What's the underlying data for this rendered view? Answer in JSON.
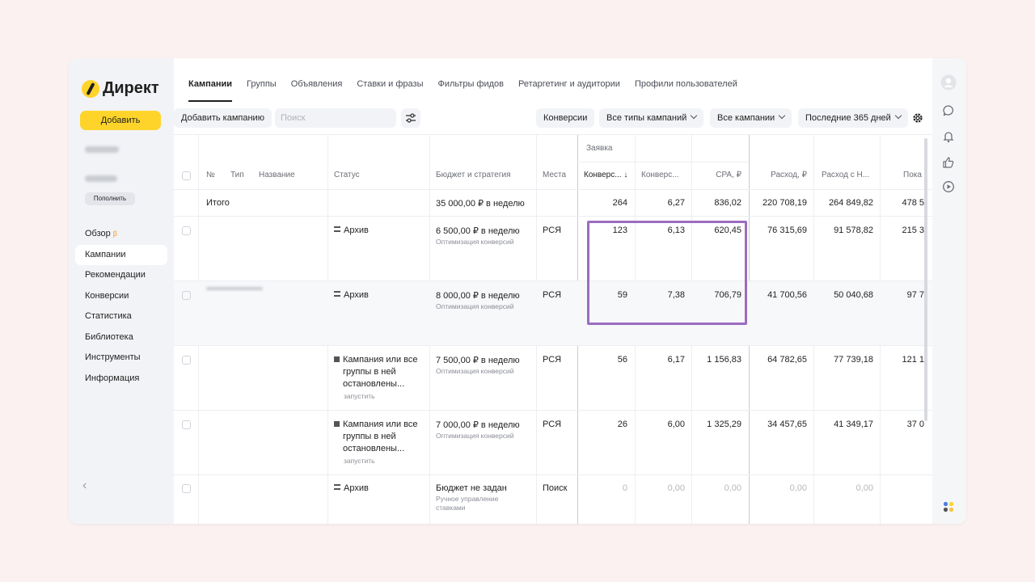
{
  "logo": {
    "text": "Директ"
  },
  "sidebar": {
    "add_button": "Добавить",
    "topup_button": "Пополнить",
    "nav": [
      {
        "label": "Обзор",
        "beta": "β"
      },
      {
        "label": "Кампании"
      },
      {
        "label": "Рекомендации"
      },
      {
        "label": "Конверсии"
      },
      {
        "label": "Статистика"
      },
      {
        "label": "Библиотека"
      },
      {
        "label": "Инструменты"
      },
      {
        "label": "Информация"
      }
    ],
    "collapse": "‹"
  },
  "tabs": [
    "Кампании",
    "Группы",
    "Объявления",
    "Ставки и фразы",
    "Фильтры фидов",
    "Ретаргетинг и аудитории",
    "Профили пользователей"
  ],
  "toolbar": {
    "add_campaign": "Добавить кампанию",
    "search_placeholder": "Поиск",
    "conversions": "Конверсии",
    "campaign_types": "Все типы кампаний",
    "all_campaigns": "Все кампании",
    "period": "Последние 365 дней"
  },
  "table": {
    "group_header": "Заявка",
    "headers": {
      "no": "№",
      "type": "Тип",
      "name": "Название",
      "status": "Статус",
      "budget": "Бюджет и стратегия",
      "places": "Места",
      "conv": "Конверс... ↓",
      "conv_rate": "Конверс...",
      "cpa": "CPA, ₽",
      "spend": "Расход, ₽",
      "spend_vat": "Расход с Н...",
      "shows": "Пока"
    },
    "total": {
      "label": "Итого",
      "budget": "35 000,00 ₽ в неделю",
      "conv": "264",
      "conv_rate": "6,27",
      "cpa": "836,02",
      "spend": "220 708,19",
      "spend_vat": "264 849,82",
      "shows": "478 5"
    },
    "rows": [
      {
        "status": "Архив",
        "status_action": "",
        "budget": "6 500,00 ₽ в неделю",
        "strategy": "Оптимизация конверсий",
        "places": "РСЯ",
        "conv": "123",
        "conv_rate": "6,13",
        "cpa": "620,45",
        "spend": "76 315,69",
        "spend_vat": "91 578,82",
        "shows": "215 3"
      },
      {
        "status": "Архив",
        "status_action": "",
        "budget": "8 000,00 ₽ в неделю",
        "strategy": "Оптимизация конверсий",
        "places": "РСЯ",
        "conv": "59",
        "conv_rate": "7,38",
        "cpa": "706,79",
        "spend": "41 700,56",
        "spend_vat": "50 040,68",
        "shows": "97 7"
      },
      {
        "status_lines": [
          "Кампания или все",
          "группы в ней",
          "остановлены..."
        ],
        "status_action": "запустить",
        "budget": "7 500,00 ₽ в неделю",
        "strategy": "Оптимизация конверсий",
        "places": "РСЯ",
        "conv": "56",
        "conv_rate": "6,17",
        "cpa": "1 156,83",
        "spend": "64 782,65",
        "spend_vat": "77 739,18",
        "shows": "121 1"
      },
      {
        "status_lines": [
          "Кампания или все",
          "группы в ней",
          "остановлены..."
        ],
        "status_action": "запустить",
        "budget": "7 000,00 ₽ в неделю",
        "strategy": "Оптимизация конверсий",
        "places": "РСЯ",
        "conv": "26",
        "conv_rate": "6,00",
        "cpa": "1 325,29",
        "spend": "34 457,65",
        "spend_vat": "41 349,17",
        "shows": "37 0"
      },
      {
        "status": "Архив",
        "budget": "Бюджет не задан",
        "strategy_lines": [
          "Ручное управление",
          "ставками"
        ],
        "places": "Поиск",
        "conv": "0",
        "conv_rate": "0,00",
        "cpa": "0,00",
        "spend": "0,00",
        "spend_vat": "0,00",
        "shows": ""
      }
    ]
  },
  "colors": {
    "accent": "#fed42b",
    "highlight": "#9b6cc0",
    "background": "#fbf1f0"
  }
}
